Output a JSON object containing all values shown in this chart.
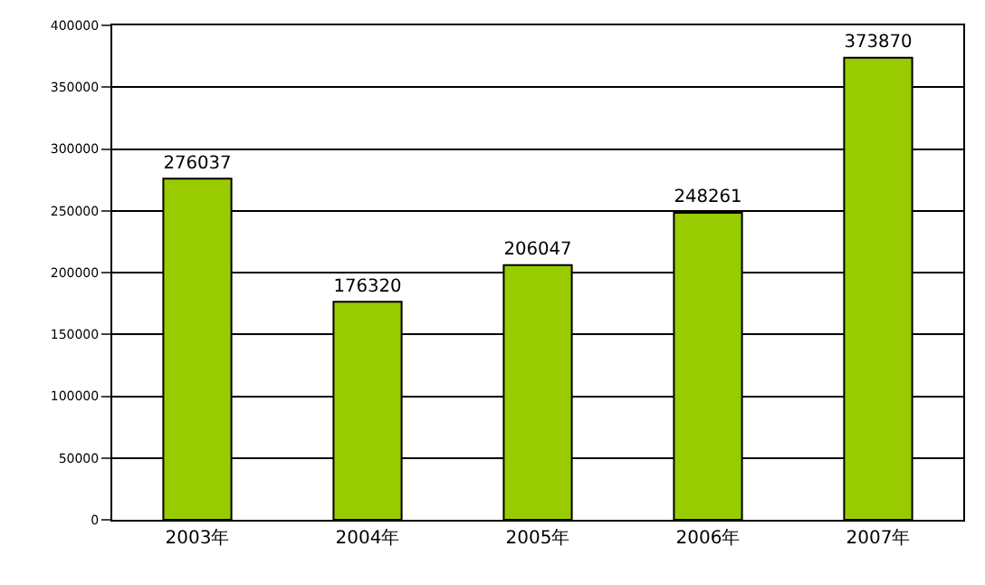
{
  "chart_data": {
    "type": "bar",
    "categories": [
      "2003年",
      "2004年",
      "2005年",
      "2006年",
      "2007年"
    ],
    "values": [
      276037,
      176320,
      206047,
      248261,
      373870
    ],
    "color": "#99cc00",
    "ylim": [
      0,
      400000
    ],
    "yticks": [
      0,
      50000,
      100000,
      150000,
      200000,
      250000,
      300000,
      350000,
      400000
    ],
    "grid": "y",
    "data_labels": true,
    "legend": false
  }
}
